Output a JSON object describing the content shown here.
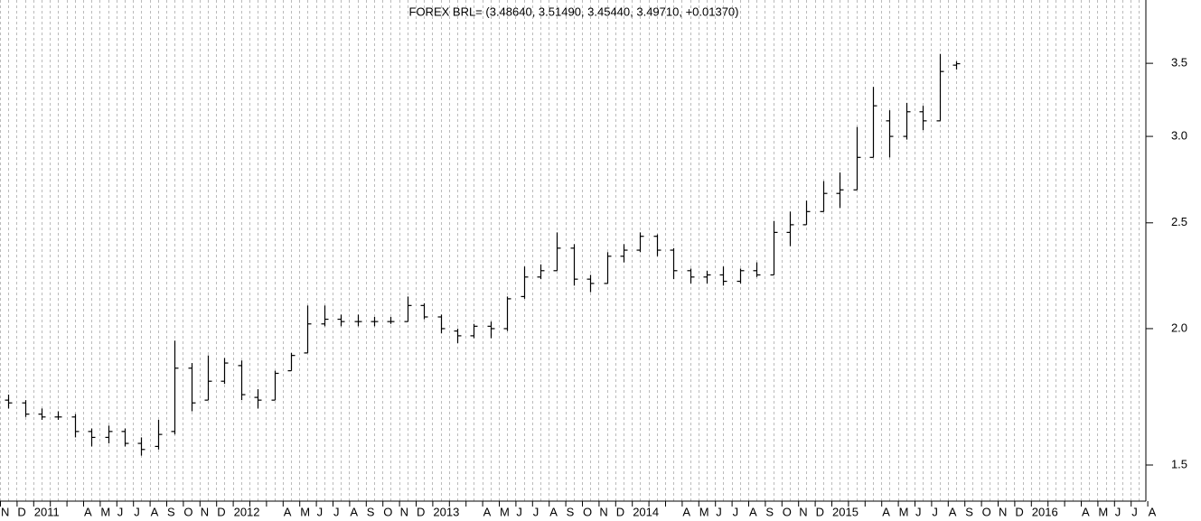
{
  "chart_data": {
    "type": "ohlc",
    "title": "FOREX BRL= (3.48640, 3.51490, 3.45440, 3.49710, +0.01370)",
    "categories": [
      "N",
      "D",
      "2011",
      null,
      null,
      "A",
      "M",
      "J",
      "J",
      "A",
      "S",
      "O",
      "N",
      "D",
      "2012",
      null,
      null,
      "A",
      "M",
      "J",
      "J",
      "A",
      "S",
      "O",
      "N",
      "D",
      "2013",
      null,
      null,
      "A",
      "M",
      "J",
      "J",
      "A",
      "S",
      "O",
      "N",
      "D",
      "2014",
      null,
      null,
      "A",
      "M",
      "J",
      "J",
      "A",
      "S",
      "O",
      "N",
      "D",
      "2015",
      null,
      null,
      "A",
      "M",
      "J",
      "J",
      "A",
      "S",
      "O",
      "N",
      "D",
      "2016",
      null,
      null,
      "A",
      "M",
      "J",
      "J",
      "A"
    ],
    "open": [
      1.72,
      1.71,
      1.67,
      1.66,
      1.66,
      1.61,
      1.59,
      1.61,
      1.57,
      1.56,
      1.61,
      1.84,
      1.72,
      1.79,
      1.85,
      1.73,
      1.72,
      1.83,
      1.9,
      2.02,
      2.04,
      2.03,
      2.03,
      2.03,
      2.03,
      2.1,
      2.05,
      1.99,
      1.97,
      2.01,
      2.0,
      2.14,
      2.23,
      2.26,
      2.37,
      2.22,
      2.2,
      2.33,
      2.36,
      2.43,
      2.36,
      2.26,
      2.23,
      2.24,
      2.21,
      2.26,
      2.24,
      2.45,
      2.49,
      2.56,
      2.66,
      2.68,
      2.87,
      3.1,
      3.0,
      3.16,
      3.1,
      3.4864,
      null,
      null,
      null,
      null,
      null,
      null,
      null,
      null,
      null,
      null,
      null,
      null
    ],
    "high": [
      1.74,
      1.72,
      1.69,
      1.68,
      1.67,
      1.62,
      1.63,
      1.62,
      1.59,
      1.65,
      1.95,
      1.86,
      1.89,
      1.88,
      1.87,
      1.76,
      1.83,
      1.9,
      2.1,
      2.1,
      2.06,
      2.06,
      2.05,
      2.05,
      2.14,
      2.11,
      2.06,
      2.0,
      2.02,
      2.03,
      2.14,
      2.28,
      2.29,
      2.45,
      2.39,
      2.24,
      2.35,
      2.39,
      2.45,
      2.44,
      2.37,
      2.27,
      2.26,
      2.28,
      2.27,
      2.3,
      2.51,
      2.56,
      2.62,
      2.73,
      2.78,
      3.06,
      3.33,
      3.17,
      3.22,
      3.2,
      3.57,
      3.5149,
      null,
      null,
      null,
      null,
      null,
      null,
      null,
      null,
      null,
      null,
      null,
      null
    ],
    "low": [
      1.69,
      1.66,
      1.65,
      1.65,
      1.59,
      1.56,
      1.57,
      1.56,
      1.53,
      1.55,
      1.6,
      1.68,
      1.72,
      1.78,
      1.72,
      1.69,
      1.72,
      1.83,
      1.9,
      2.01,
      2.01,
      2.01,
      2.01,
      2.02,
      2.03,
      2.04,
      1.98,
      1.94,
      1.96,
      1.96,
      1.99,
      2.13,
      2.22,
      2.26,
      2.19,
      2.16,
      2.2,
      2.3,
      2.35,
      2.33,
      2.22,
      2.2,
      2.2,
      2.19,
      2.2,
      2.23,
      2.24,
      2.38,
      2.49,
      2.56,
      2.58,
      2.68,
      2.87,
      2.87,
      2.98,
      3.04,
      3.1,
      3.4544,
      null,
      null,
      null,
      null,
      null,
      null,
      null,
      null,
      null,
      null,
      null,
      null
    ],
    "close": [
      1.71,
      1.67,
      1.66,
      1.66,
      1.61,
      1.59,
      1.61,
      1.57,
      1.55,
      1.6,
      1.84,
      1.71,
      1.79,
      1.86,
      1.74,
      1.72,
      1.82,
      1.89,
      2.02,
      2.04,
      2.03,
      2.03,
      2.03,
      2.03,
      2.1,
      2.05,
      2.0,
      1.97,
      2.01,
      2.0,
      2.13,
      2.23,
      2.26,
      2.37,
      2.22,
      2.2,
      2.33,
      2.36,
      2.43,
      2.36,
      2.26,
      2.23,
      2.24,
      2.21,
      2.26,
      2.24,
      2.45,
      2.49,
      2.56,
      2.66,
      2.68,
      2.87,
      3.2,
      3.0,
      3.16,
      3.1,
      3.44,
      3.4971,
      null,
      null,
      null,
      null,
      null,
      null,
      null,
      null,
      null,
      null,
      null,
      null
    ],
    "color": "#000000",
    "log_scale": true,
    "ylim": [
      1.39,
      4.0
    ],
    "yticks": [
      1.5,
      {
        "value": 2,
        "label": "2.0"
      },
      2.5,
      {
        "value": 3,
        "label": "3.0"
      },
      3.5
    ],
    "grid": true
  }
}
